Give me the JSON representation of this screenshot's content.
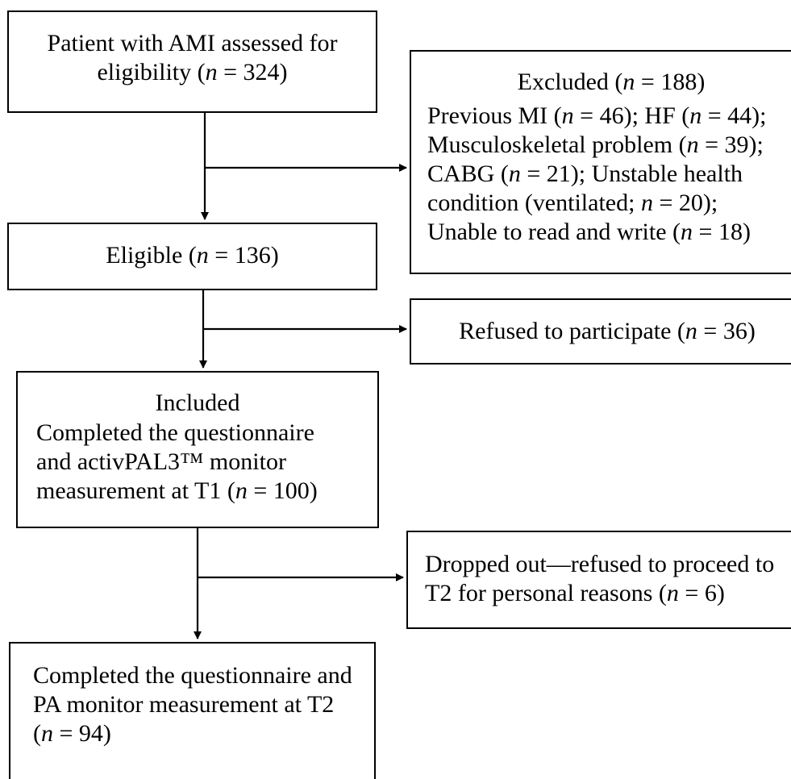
{
  "boxes": {
    "assessed": {
      "line1": "Patient with AMI assessed for",
      "line2_pre": "eligibility (",
      "n_var": "n",
      "line2_post": " = 324)"
    },
    "excluded": {
      "title_pre": "Excluded (",
      "title_post": " = 188)",
      "l1_a": "Previous MI (",
      "l1_b": " = 46); HF (",
      "l1_c": " = 44);",
      "l2_a": "Musculoskeletal problem (",
      "l2_b": " = 39);",
      "l3_a": "CABG (",
      "l3_b": " = 21); Unstable health",
      "l4_a": "condition (ventilated; ",
      "l4_b": " = 20);",
      "l5_a": "Unable to read and write (",
      "l5_b": " = 18)"
    },
    "eligible": {
      "pre": "Eligible (",
      "post": " = 136)"
    },
    "refused": {
      "pre": "Refused to participate (",
      "post": " = 36)"
    },
    "included": {
      "l1": "Included",
      "l2": "Completed the questionnaire",
      "l3": "and activPAL3™ monitor",
      "l4_pre": "measurement at T1 (",
      "l4_post": " = 100)"
    },
    "dropped": {
      "l1": "Dropped out—refused to proceed to",
      "l2_pre": "T2 for personal reasons (",
      "l2_post": " = 6)"
    },
    "completed": {
      "l1": "Completed the questionnaire and",
      "l2": "PA monitor measurement at T2",
      "l3_pre": "(",
      "l3_post": " = 94)"
    }
  },
  "n_symbol": "n"
}
